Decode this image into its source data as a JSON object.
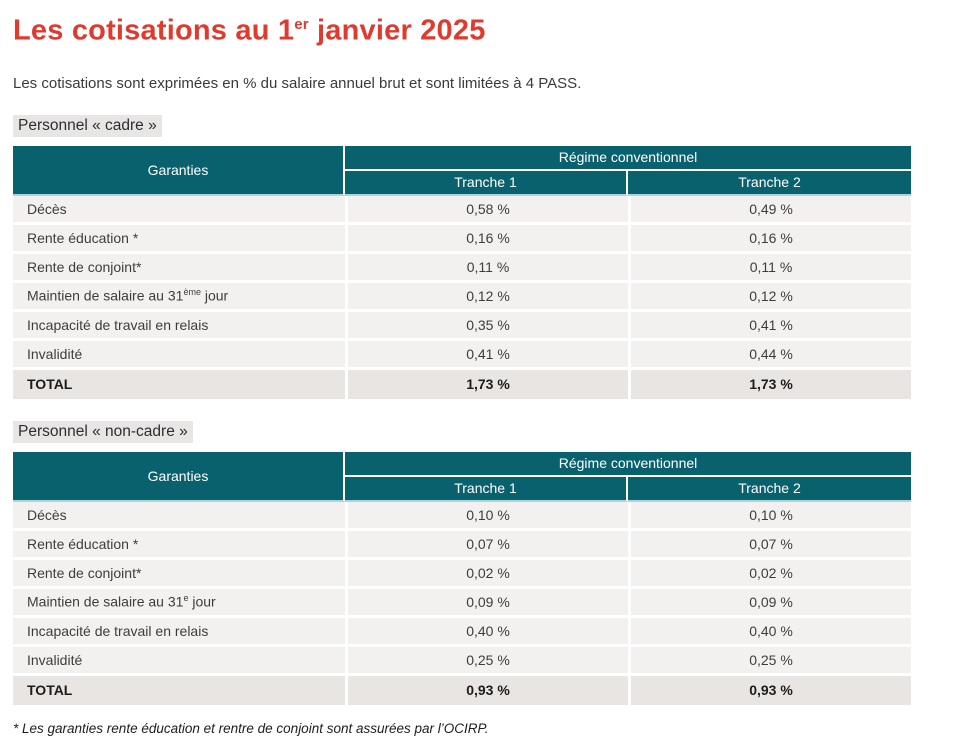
{
  "header": {
    "title_pre": "Les cotisations au 1",
    "title_sup": "er",
    "title_post": " janvier 2025",
    "subtitle": "Les cotisations sont exprimées en % du salaire annuel brut et sont limitées à 4 PASS."
  },
  "colors": {
    "title_red": "#e0392d",
    "table_header_teal": "#09616e",
    "header_underline_teal": "#a9d6db",
    "row_background": "#f2f1f0",
    "total_row_background": "#e9e5e3",
    "section_label_background": "#e8e6e5",
    "body_text": "#3d3d3d"
  },
  "tables": [
    {
      "section_label": "Personnel « cadre »",
      "headers": {
        "garanties": "Garanties",
        "group": "Régime conventionnel",
        "tranche1": "Tranche 1",
        "tranche2": "Tranche 2"
      },
      "rows": [
        {
          "label": "Décès",
          "t1": "0,58 %",
          "t2": "0,49 %"
        },
        {
          "label": "Rente éducation *",
          "t1": "0,16 %",
          "t2": "0,16 %"
        },
        {
          "label": "Rente de conjoint*",
          "t1": "0,11 %",
          "t2": "0,11 %"
        },
        {
          "label_pre": "Maintien de salaire au 31",
          "label_sup": "ème",
          "label_post": " jour",
          "t1": "0,12 %",
          "t2": "0,12 %"
        },
        {
          "label": "Incapacité de travail en relais",
          "t1": "0,35 %",
          "t2": "0,41 %"
        },
        {
          "label": "Invalidité",
          "t1": "0,41 %",
          "t2": "0,44 %"
        }
      ],
      "total": {
        "label": "TOTAL",
        "t1": "1,73 %",
        "t2": "1,73 %"
      }
    },
    {
      "section_label": "Personnel « non-cadre »",
      "headers": {
        "garanties": "Garanties",
        "group": "Régime conventionnel",
        "tranche1": "Tranche 1",
        "tranche2": "Tranche 2"
      },
      "rows": [
        {
          "label": "Décès",
          "t1": "0,10 %",
          "t2": "0,10 %"
        },
        {
          "label": "Rente éducation *",
          "t1": "0,07 %",
          "t2": "0,07 %"
        },
        {
          "label": "Rente de conjoint*",
          "t1": "0,02 %",
          "t2": "0,02 %"
        },
        {
          "label_pre": "Maintien de salaire au 31",
          "label_sup": "e",
          "label_post": " jour",
          "t1": "0,09 %",
          "t2": "0,09 %"
        },
        {
          "label": "Incapacité de travail en relais",
          "t1": "0,40 %",
          "t2": "0,40 %"
        },
        {
          "label": "Invalidité",
          "t1": "0,25 %",
          "t2": "0,25 %"
        }
      ],
      "total": {
        "label": "TOTAL",
        "t1": "0,93 %",
        "t2": "0,93 %"
      }
    }
  ],
  "footer": {
    "footnote": "* Les garanties rente éducation et rentre de conjoint sont assurées par l’OCIRP."
  }
}
